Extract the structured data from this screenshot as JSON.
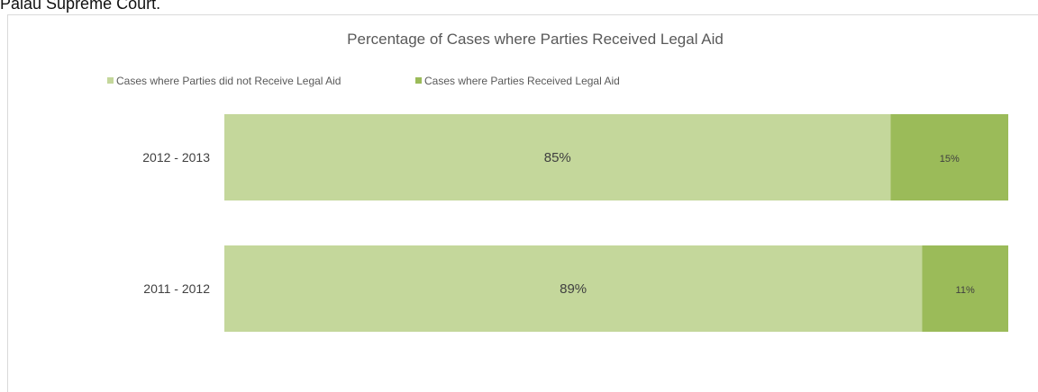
{
  "page": {
    "caption": "Palau Supreme Court."
  },
  "chart_data": {
    "type": "bar",
    "orientation": "horizontal",
    "stacked": true,
    "normalized_percent": true,
    "title": "Percentage of Cases where Parties Received Legal Aid",
    "categories": [
      "2012 - 2013",
      "2011 - 2012"
    ],
    "series": [
      {
        "name": "Cases where Parties did not Receive Legal Aid",
        "values": [
          85,
          89
        ],
        "labels": [
          "85%",
          "89%"
        ],
        "color": "#c4d79b"
      },
      {
        "name": "Cases where Parties Received Legal Aid",
        "values": [
          15,
          11
        ],
        "labels": [
          "15%",
          "11%"
        ],
        "color": "#9bbb59"
      }
    ],
    "xlim": [
      0,
      100
    ],
    "legend_position": "top-left",
    "grid": false
  }
}
